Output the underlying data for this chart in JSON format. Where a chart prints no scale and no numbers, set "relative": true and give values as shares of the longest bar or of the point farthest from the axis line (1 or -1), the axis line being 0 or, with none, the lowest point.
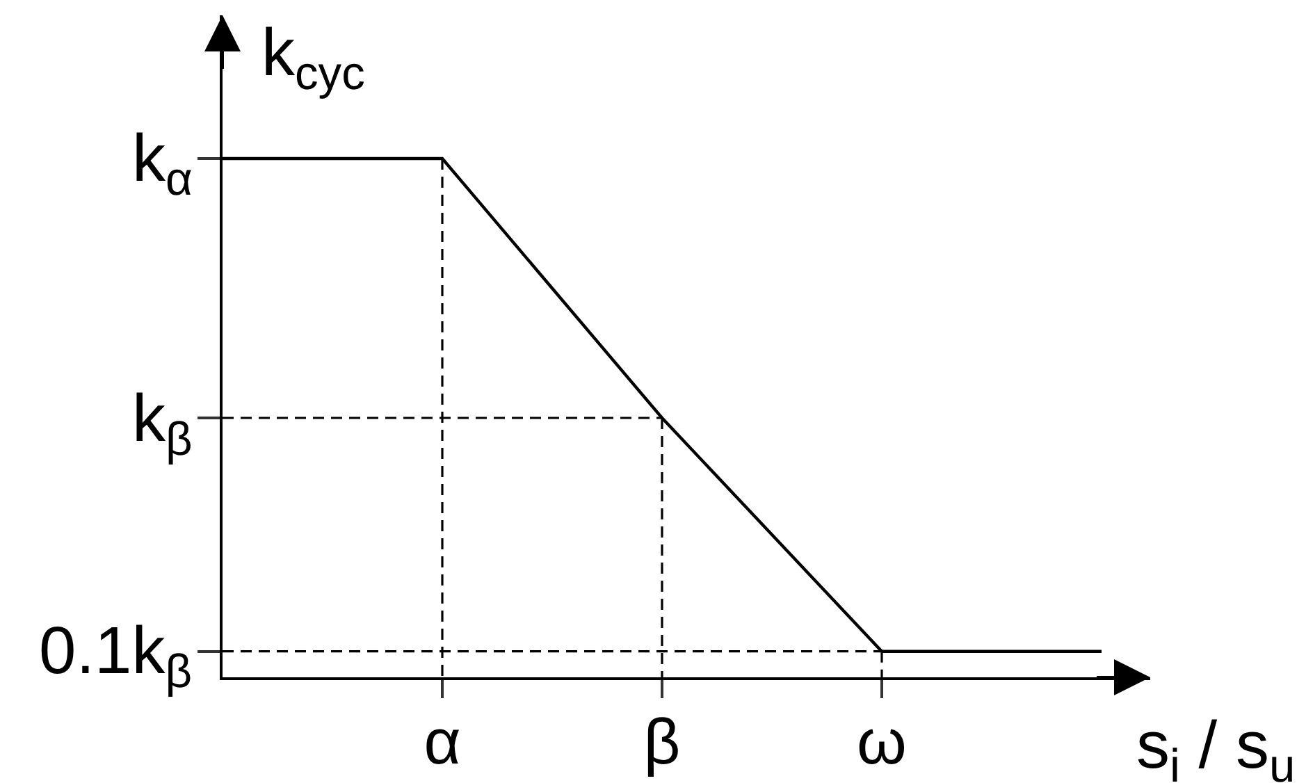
{
  "chart_data": {
    "type": "line",
    "relative": true,
    "xlabel": "s$_{i}$ / s$_{u}$",
    "ylabel": "k$_{cyc}$",
    "categories": [
      null,
      "α",
      "β",
      "ω",
      null
    ],
    "annotations": [
      "k$_{α}$",
      "k$_{β}$",
      "0.1k$_{β}$"
    ],
    "series": [
      {
        "color": "#000000",
        "values": [
          1,
          1,
          0.5,
          0.05,
          0.05
        ]
      },
      {
        "color": "#000000",
        "line_style": "dashed",
        "values": [
          0.5,
          0.5,
          0.5,
          null,
          null
        ]
      },
      {
        "color": "#000000",
        "line_style": "dashed",
        "values": [
          0.05,
          0.05,
          0.05,
          0.05,
          null
        ]
      },
      {
        "color": "#000000",
        "line_style": "dashed",
        "x": [
          "α",
          "α"
        ],
        "values": [
          1,
          0
        ]
      },
      {
        "color": "#000000",
        "line_style": "dashed",
        "x": [
          "β",
          "β"
        ],
        "values": [
          0.5,
          0
        ]
      },
      {
        "color": "#000000",
        "line_style": "dashed",
        "x": [
          "ω",
          "ω"
        ],
        "values": [
          0.05,
          0
        ]
      }
    ]
  }
}
